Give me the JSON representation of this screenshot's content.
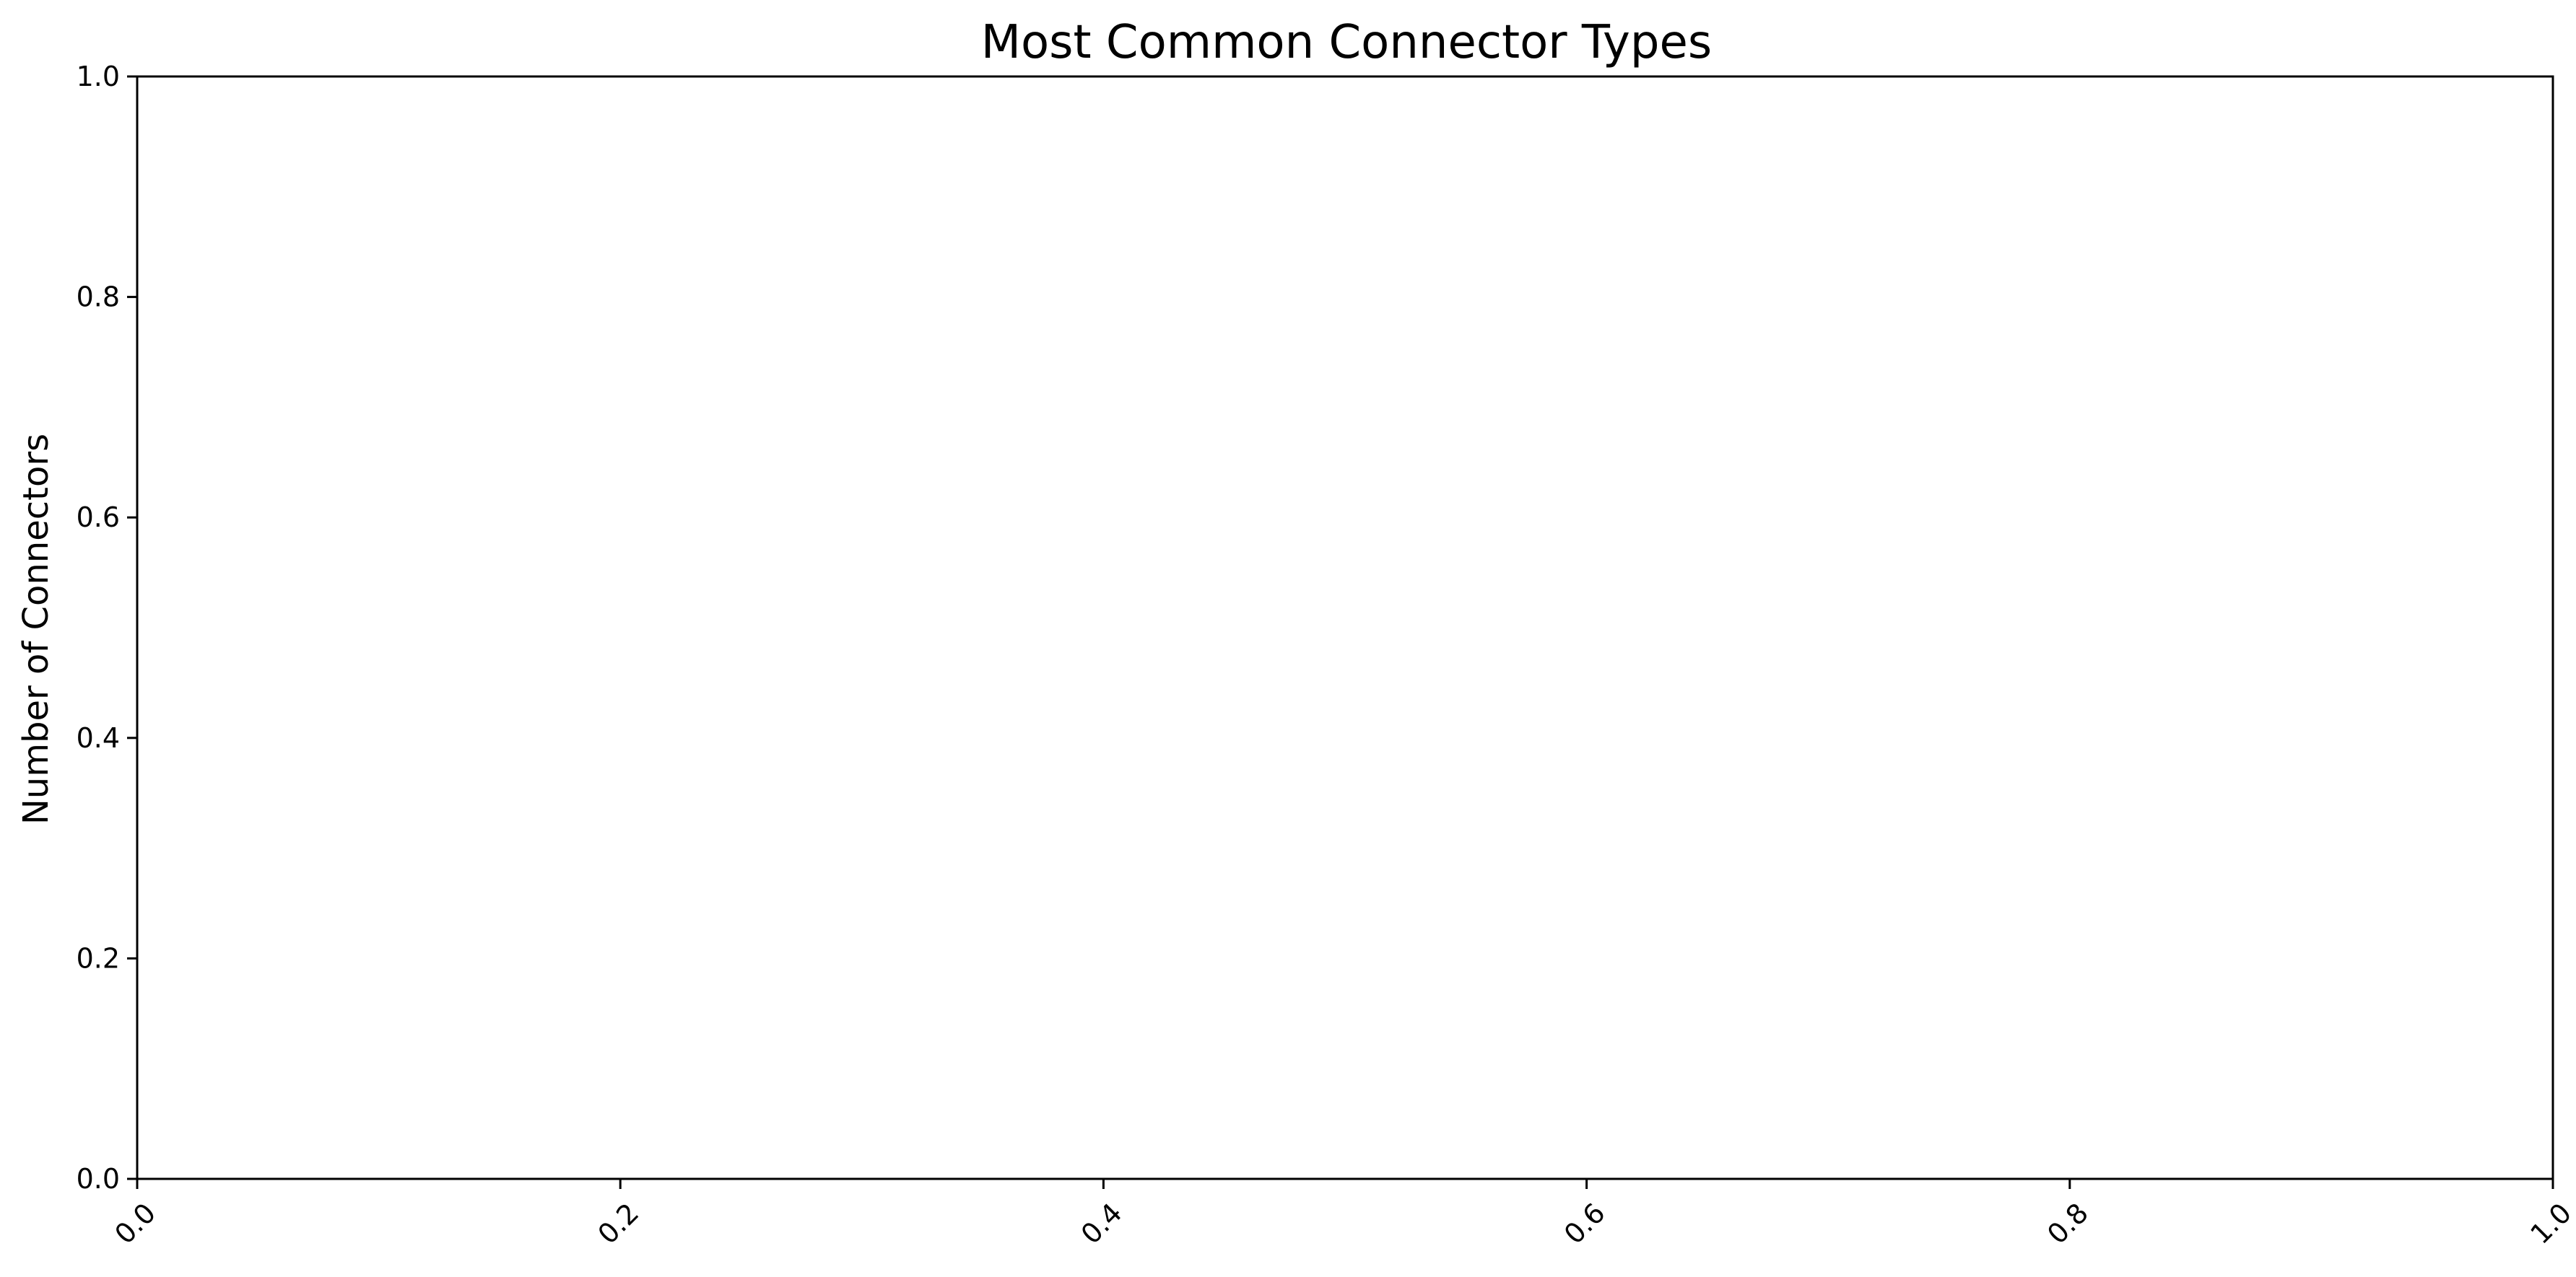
{
  "chart_data": {
    "type": "bar",
    "title": "Most Common Connector Types",
    "xlabel": "",
    "ylabel": "Number of Connectors",
    "categories": [],
    "values": [],
    "xlim": [
      0.0,
      1.0
    ],
    "ylim": [
      0.0,
      1.0
    ],
    "x_ticks": [
      "0.0",
      "0.2",
      "0.4",
      "0.6",
      "0.8",
      "1.0"
    ],
    "y_ticks": [
      "0.0",
      "0.2",
      "0.4",
      "0.6",
      "0.8",
      "1.0"
    ],
    "x_tick_rotation": 45,
    "grid": false,
    "legend": "none"
  }
}
